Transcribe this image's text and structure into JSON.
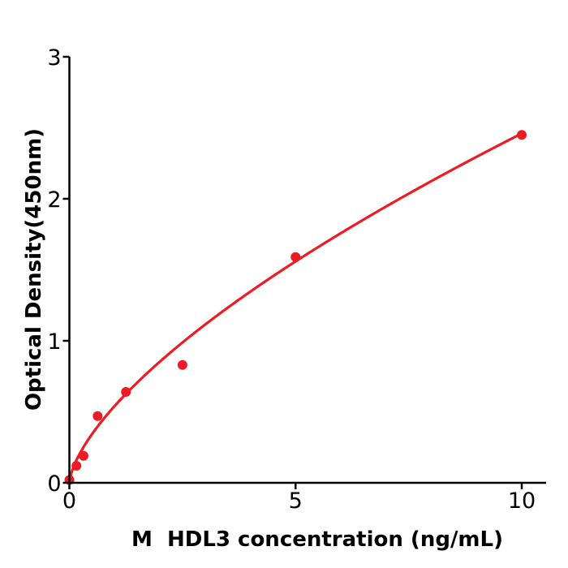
{
  "figure": {
    "background": "#ffffff",
    "axis_color": "#000000"
  },
  "chart_data": {
    "type": "scatter",
    "title": "",
    "xlabel": "M  HDL3 concentration (ng/mL)",
    "ylabel": "Optical Density(450nm)",
    "xlim": [
      0,
      10.55
    ],
    "ylim": [
      0,
      3
    ],
    "grid": false,
    "legend": "none",
    "x_ticks": [
      {
        "value": 0,
        "label": "0"
      },
      {
        "value": 5,
        "label": "5"
      },
      {
        "value": 10,
        "label": "10"
      }
    ],
    "y_ticks": [
      {
        "value": 0,
        "label": "0"
      },
      {
        "value": 1,
        "label": "1"
      },
      {
        "value": 2,
        "label": "2"
      },
      {
        "value": 3,
        "label": "3"
      }
    ],
    "series": [
      {
        "name": "standard-points",
        "type": "scatter",
        "color": "#ed1c24",
        "marker_radius": 6,
        "points": [
          {
            "x": 0,
            "y": 0.02
          },
          {
            "x": 0.156,
            "y": 0.12
          },
          {
            "x": 0.313,
            "y": 0.19
          },
          {
            "x": 0.625,
            "y": 0.47
          },
          {
            "x": 1.25,
            "y": 0.64
          },
          {
            "x": 2.5,
            "y": 0.83
          },
          {
            "x": 5,
            "y": 1.59
          },
          {
            "x": 10,
            "y": 2.45
          }
        ]
      },
      {
        "name": "fit-curve",
        "type": "line",
        "color": "#ed1c24",
        "line_width": 3.2,
        "fit": {
          "kind": "power",
          "a": 0.5407,
          "b": 0.658,
          "x_start": 0,
          "x_end": 10
        }
      }
    ]
  }
}
